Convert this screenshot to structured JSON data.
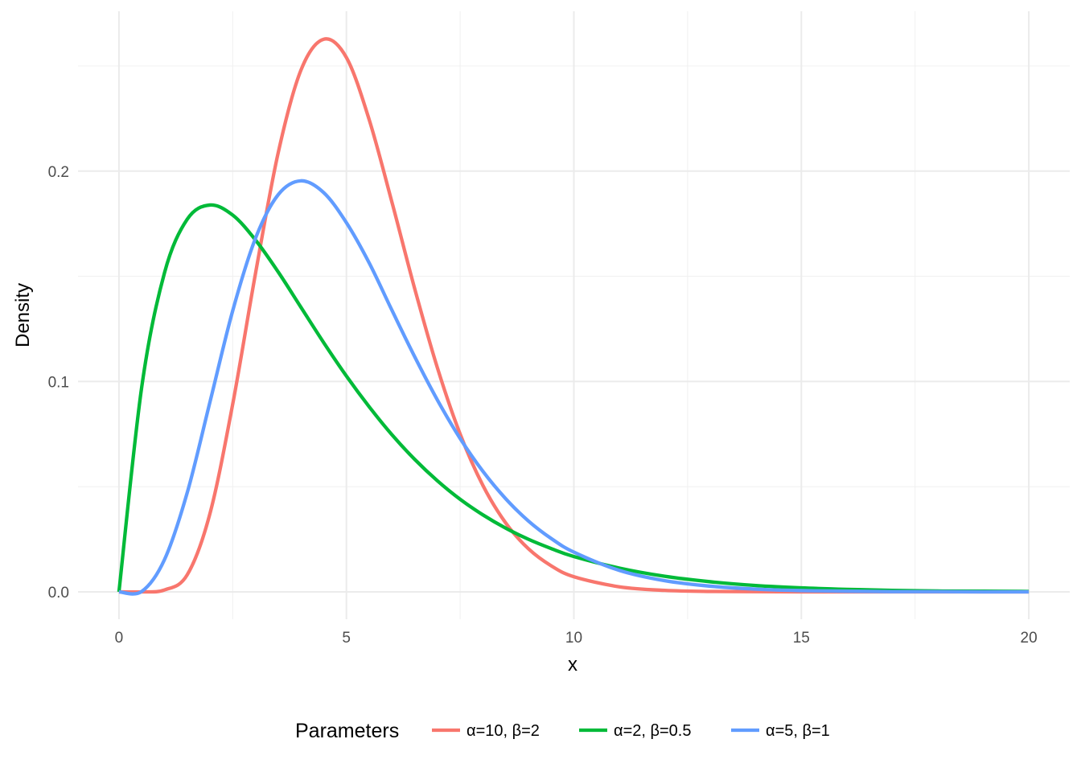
{
  "chart_data": {
    "type": "line",
    "title": "",
    "xlabel": "x",
    "ylabel": "Density",
    "xlim": [
      -0.9,
      20.9
    ],
    "ylim": [
      -0.013,
      0.276
    ],
    "x_ticks": [
      0,
      5,
      10,
      15,
      20
    ],
    "x_tick_labels": [
      "0",
      "5",
      "10",
      "15",
      "20"
    ],
    "y_ticks": [
      0.0,
      0.1,
      0.2
    ],
    "y_tick_labels": [
      "0.0",
      "0.1",
      "0.2"
    ],
    "grid": true,
    "legend": {
      "title": "Parameters",
      "position": "bottom"
    },
    "x": [
      0,
      0.5,
      1,
      1.5,
      2,
      2.5,
      3,
      3.5,
      4,
      4.5,
      5,
      5.5,
      6,
      6.5,
      7,
      7.5,
      8,
      8.5,
      9,
      9.5,
      10,
      11,
      12,
      13,
      14,
      15,
      16,
      17,
      18,
      19,
      20
    ],
    "series": [
      {
        "name": "α=10, β=2",
        "color": "#F8766D",
        "values": [
          0.0,
          0.0,
          0.0009,
          0.0081,
          0.0372,
          0.0892,
          0.1512,
          0.2087,
          0.248,
          0.2627,
          0.254,
          0.2245,
          0.1853,
          0.1442,
          0.1065,
          0.075,
          0.0506,
          0.0328,
          0.0205,
          0.0124,
          0.0072,
          0.0024,
          0.0007,
          0.0002,
          0.0001,
          0.0,
          0.0,
          0.0,
          0.0,
          0.0,
          0.0
        ]
      },
      {
        "name": "α=2, β=0.5",
        "color": "#00BA38",
        "values": [
          0.0,
          0.0973,
          0.1516,
          0.1771,
          0.1839,
          0.1791,
          0.1673,
          0.1521,
          0.1353,
          0.1185,
          0.1026,
          0.088,
          0.0747,
          0.063,
          0.0528,
          0.044,
          0.0366,
          0.0303,
          0.025,
          0.0206,
          0.0168,
          0.0113,
          0.0074,
          0.0048,
          0.003,
          0.0019,
          0.0012,
          0.0007,
          0.0004,
          0.0003,
          0.0002
        ]
      },
      {
        "name": "α=5, β=1",
        "color": "#619CFF",
        "values": [
          0.0,
          0.0002,
          0.0153,
          0.0471,
          0.0902,
          0.1336,
          0.168,
          0.1888,
          0.1954,
          0.1898,
          0.1755,
          0.1564,
          0.1339,
          0.1118,
          0.0912,
          0.0729,
          0.0573,
          0.0443,
          0.0337,
          0.0254,
          0.0189,
          0.0102,
          0.0053,
          0.0027,
          0.0013,
          0.0006,
          0.0003,
          0.0001,
          0.0001,
          0.0,
          0.0
        ]
      }
    ]
  }
}
